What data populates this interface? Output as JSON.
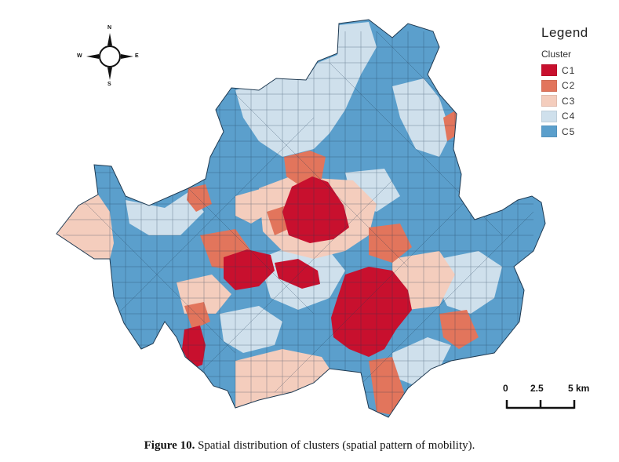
{
  "legend": {
    "title": "Legend",
    "subtitle": "Cluster",
    "items": [
      {
        "label": "C1",
        "color": "#c8102e"
      },
      {
        "label": "C2",
        "color": "#e2755c"
      },
      {
        "label": "C3",
        "color": "#f4cdbd"
      },
      {
        "label": "C4",
        "color": "#cfe0ec"
      },
      {
        "label": "C5",
        "color": "#5b9fcc"
      }
    ]
  },
  "compass": {
    "n": "N",
    "s": "S",
    "e": "E",
    "w": "W"
  },
  "scale": {
    "labels": [
      "0",
      "2.5",
      "5 km"
    ]
  },
  "caption": {
    "label": "Figure 10.",
    "text": " Spatial distribution of clusters (spatial pattern of mobility)."
  }
}
